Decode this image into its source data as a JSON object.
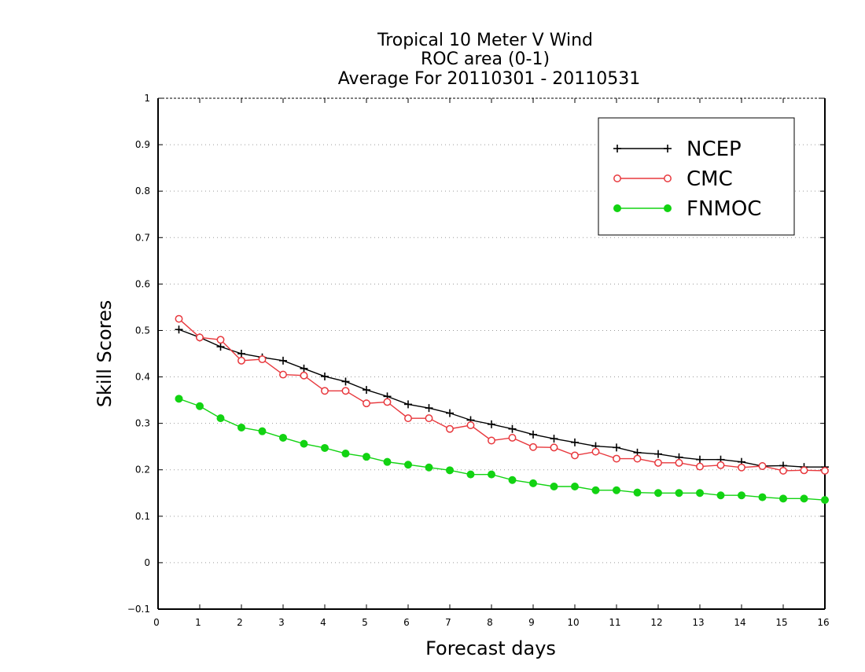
{
  "chart_data": {
    "type": "line",
    "title": [
      "Tropical 10 Meter V Wind",
      "ROC area (0-1)",
      "Average For 20110301 - 20110531"
    ],
    "xlabel": "Forecast days",
    "ylabel": "Skill Scores",
    "xlim": [
      0,
      16
    ],
    "ylim": [
      -0.1,
      1
    ],
    "xticks": [
      "0",
      "1",
      "2",
      "3",
      "4",
      "5",
      "6",
      "7",
      "8",
      "9",
      "10",
      "11",
      "12",
      "13",
      "14",
      "15",
      "16"
    ],
    "yticks": [
      "−0.1",
      "0",
      "0.1",
      "0.2",
      "0.3",
      "0.4",
      "0.5",
      "0.6",
      "0.7",
      "0.8",
      "0.9",
      "1"
    ],
    "ytick_values": [
      -0.1,
      0,
      0.1,
      0.2,
      0.3,
      0.4,
      0.5,
      0.6,
      0.7,
      0.8,
      0.9,
      1.0
    ],
    "grid": "horizontal dotted",
    "legend_position": "top-right",
    "x": [
      0.5,
      1,
      1.5,
      2,
      2.5,
      3,
      3.5,
      4,
      4.5,
      5,
      5.5,
      6,
      6.5,
      7,
      7.5,
      8,
      8.5,
      9,
      9.5,
      10,
      10.5,
      11,
      11.5,
      12,
      12.5,
      13,
      13.5,
      14,
      14.5,
      15,
      15.5,
      16
    ],
    "series": [
      {
        "name": "NCEP",
        "color": "#000000",
        "marker": "plus",
        "values": [
          0.502,
          0.485,
          0.465,
          0.45,
          0.442,
          0.435,
          0.418,
          0.401,
          0.39,
          0.372,
          0.358,
          0.341,
          0.333,
          0.322,
          0.307,
          0.298,
          0.288,
          0.276,
          0.267,
          0.259,
          0.251,
          0.248,
          0.237,
          0.234,
          0.227,
          0.222,
          0.222,
          0.217,
          0.208,
          0.209,
          0.206,
          0.206
        ]
      },
      {
        "name": "CMC",
        "color": "#e8383d",
        "marker": "open-circle",
        "values": [
          0.525,
          0.485,
          0.48,
          0.435,
          0.438,
          0.405,
          0.403,
          0.37,
          0.37,
          0.343,
          0.346,
          0.311,
          0.311,
          0.288,
          0.296,
          0.263,
          0.269,
          0.249,
          0.248,
          0.231,
          0.239,
          0.224,
          0.224,
          0.215,
          0.215,
          0.207,
          0.21,
          0.205,
          0.208,
          0.198,
          0.199,
          0.198
        ]
      },
      {
        "name": "FNMOC",
        "color": "#12d312",
        "marker": "filled-circle",
        "values": [
          0.353,
          0.337,
          0.311,
          0.291,
          0.283,
          0.269,
          0.256,
          0.247,
          0.235,
          0.228,
          0.217,
          0.211,
          0.205,
          0.199,
          0.19,
          0.19,
          0.178,
          0.171,
          0.164,
          0.164,
          0.156,
          0.156,
          0.151,
          0.15,
          0.15,
          0.15,
          0.145,
          0.145,
          0.141,
          0.138,
          0.138,
          0.135
        ]
      }
    ]
  }
}
